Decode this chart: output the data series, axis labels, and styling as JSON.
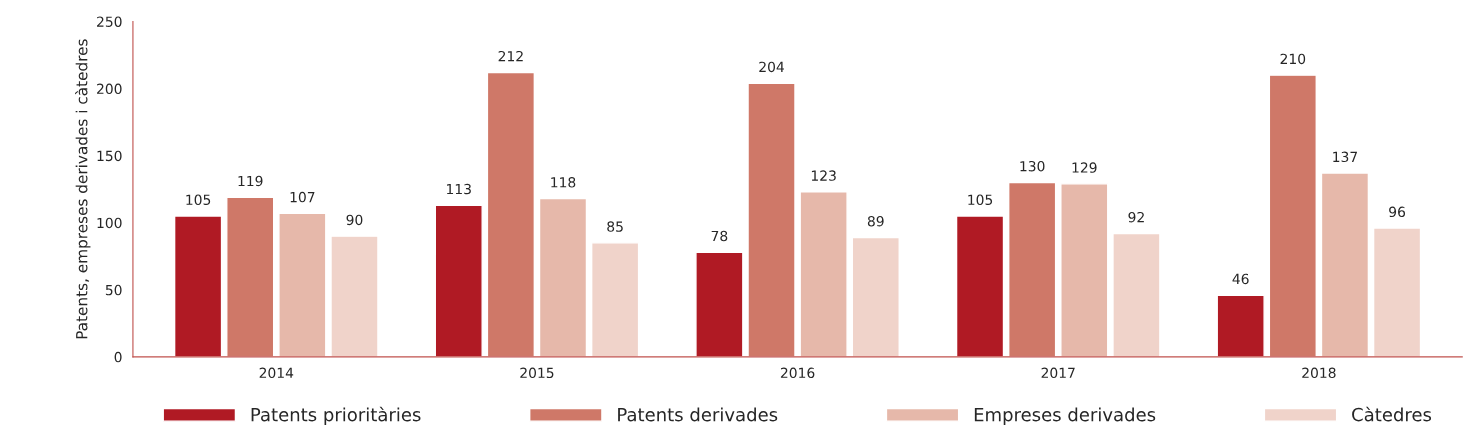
{
  "chart_data": {
    "type": "bar",
    "ylabel": "Patents, empreses derivades i càtedres",
    "categories": [
      "2014",
      "2015",
      "2016",
      "2017",
      "2018"
    ],
    "series": [
      {
        "name": "Patents prioritàries",
        "color": "#b01a24",
        "values": [
          105,
          113,
          78,
          105,
          46
        ]
      },
      {
        "name": "Patents derivades",
        "color": "#cf7868",
        "values": [
          119,
          212,
          204,
          130,
          210
        ]
      },
      {
        "name": "Empreses derivades",
        "color": "#e6b8aa",
        "values": [
          107,
          118,
          123,
          129,
          137
        ]
      },
      {
        "name": "Càtedres",
        "color": "#f0d3ca",
        "values": [
          90,
          85,
          89,
          92,
          96
        ]
      }
    ],
    "ylim": [
      0,
      250
    ],
    "yticks": [
      0,
      50,
      100,
      150,
      200,
      250
    ],
    "data_labels": true,
    "grid": false,
    "legend": "bottom"
  }
}
